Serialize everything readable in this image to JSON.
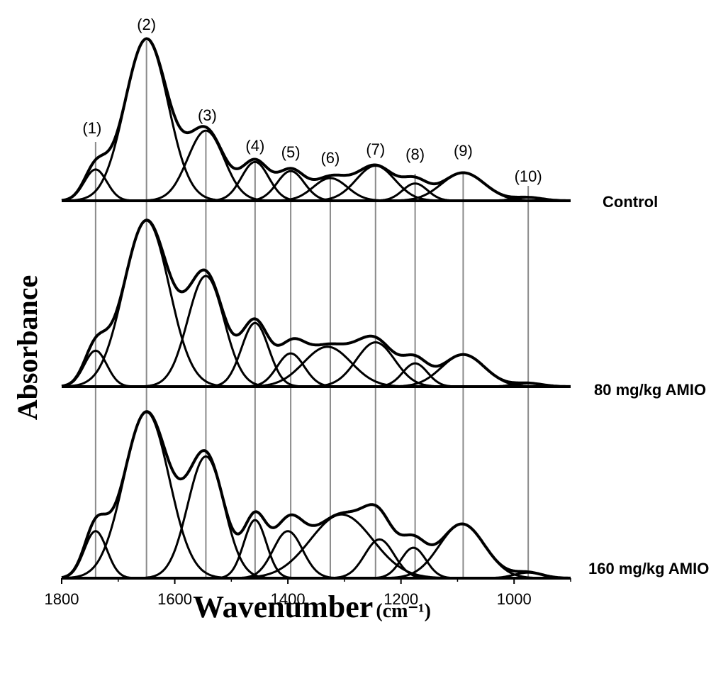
{
  "chart_data": {
    "type": "line",
    "xlabel": "Wavenumber",
    "xlabel_unit": "(cm⁻¹)",
    "ylabel": "Absorbance",
    "xlim": [
      1800,
      900
    ],
    "x_reversed": true,
    "x_ticks": [
      1800,
      1600,
      1400,
      1200,
      1000
    ],
    "grid": "vertical reference lines at band positions",
    "legend": "labels at right end of each trace",
    "bands": [
      {
        "label": "(1)",
        "center": 1740
      },
      {
        "label": "(2)",
        "center": 1650
      },
      {
        "label": "(3)",
        "center": 1545
      },
      {
        "label": "(4)",
        "center": 1458
      },
      {
        "label": "(5)",
        "center": 1395
      },
      {
        "label": "(6)",
        "center": 1325
      },
      {
        "label": "(7)",
        "center": 1245
      },
      {
        "label": "(8)",
        "center": 1175
      },
      {
        "label": "(9)",
        "center": 1090
      },
      {
        "label": "(10)",
        "center": 975
      }
    ],
    "series": [
      {
        "name": "Control",
        "peaks": [
          {
            "center": 1740,
            "height": 0.58,
            "width": 20
          },
          {
            "center": 1650,
            "height": 3.0,
            "width": 38
          },
          {
            "center": 1545,
            "height": 1.3,
            "width": 32
          },
          {
            "center": 1458,
            "height": 0.72,
            "width": 24
          },
          {
            "center": 1395,
            "height": 0.55,
            "width": 24
          },
          {
            "center": 1325,
            "height": 0.42,
            "width": 30
          },
          {
            "center": 1245,
            "height": 0.65,
            "width": 34
          },
          {
            "center": 1175,
            "height": 0.32,
            "width": 22
          },
          {
            "center": 1090,
            "height": 0.52,
            "width": 38
          },
          {
            "center": 975,
            "height": 0.06,
            "width": 25
          }
        ]
      },
      {
        "name": "80 mg/kg AMIO",
        "peaks": [
          {
            "center": 1740,
            "height": 0.65,
            "width": 20
          },
          {
            "center": 1650,
            "height": 3.0,
            "width": 40
          },
          {
            "center": 1545,
            "height": 2.0,
            "width": 32
          },
          {
            "center": 1458,
            "height": 1.15,
            "width": 24
          },
          {
            "center": 1395,
            "height": 0.6,
            "width": 24
          },
          {
            "center": 1330,
            "height": 0.72,
            "width": 42
          },
          {
            "center": 1245,
            "height": 0.8,
            "width": 34
          },
          {
            "center": 1175,
            "height": 0.42,
            "width": 22
          },
          {
            "center": 1090,
            "height": 0.58,
            "width": 38
          },
          {
            "center": 975,
            "height": 0.06,
            "width": 25
          }
        ]
      },
      {
        "name": "160 mg/kg AMIO",
        "peaks": [
          {
            "center": 1740,
            "height": 0.85,
            "width": 20
          },
          {
            "center": 1650,
            "height": 3.0,
            "width": 40
          },
          {
            "center": 1545,
            "height": 2.2,
            "width": 32
          },
          {
            "center": 1458,
            "height": 1.05,
            "width": 20
          },
          {
            "center": 1400,
            "height": 0.85,
            "width": 26
          },
          {
            "center": 1305,
            "height": 1.15,
            "width": 55
          },
          {
            "center": 1238,
            "height": 0.7,
            "width": 26
          },
          {
            "center": 1178,
            "height": 0.55,
            "width": 22
          },
          {
            "center": 1092,
            "height": 0.98,
            "width": 40
          },
          {
            "center": 975,
            "height": 0.1,
            "width": 25
          }
        ]
      }
    ]
  }
}
